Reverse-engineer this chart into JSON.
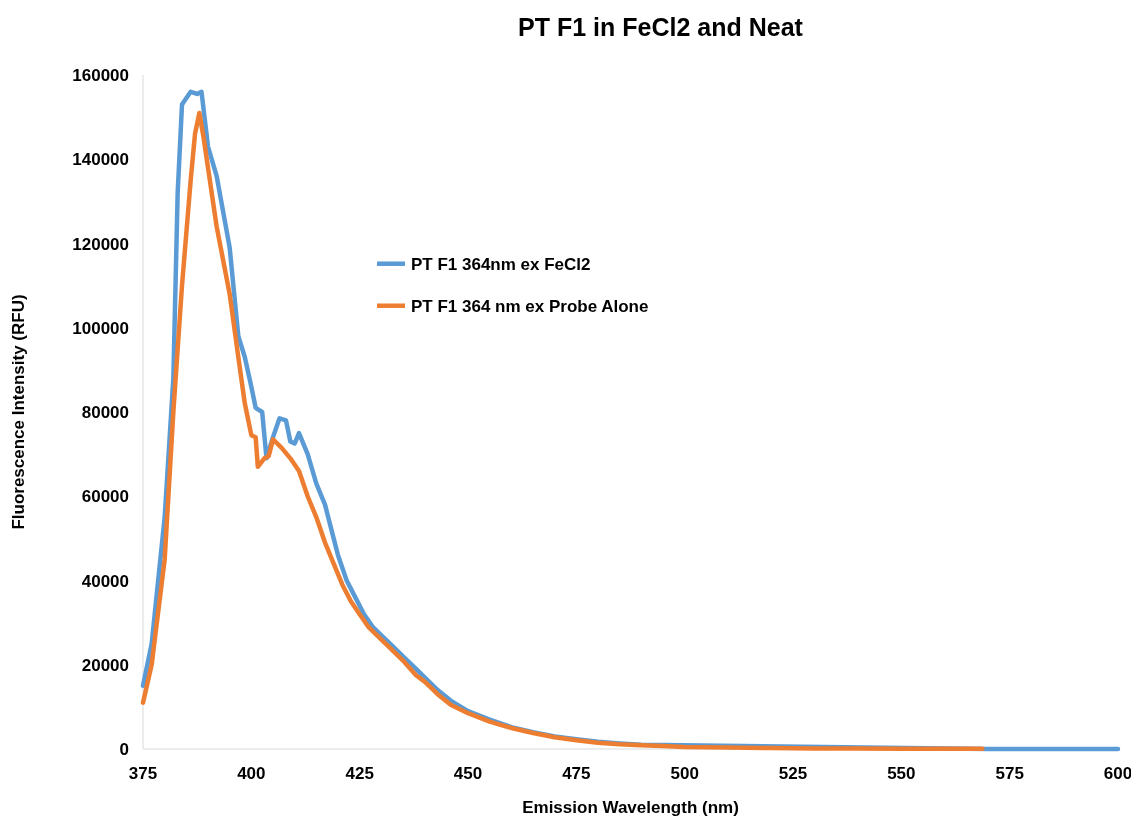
{
  "chart_data": {
    "type": "line",
    "title": "PT F1 in FeCl2 and Neat",
    "xlabel": "Emission Wavelength (nm)",
    "ylabel": "Fluorescence Intensity (RFU)",
    "xlim": [
      375,
      600
    ],
    "xticks": [
      375,
      400,
      425,
      450,
      475,
      500,
      525,
      550,
      575,
      600
    ],
    "ylim": [
      0,
      160000
    ],
    "yticks": [
      0,
      20000,
      40000,
      60000,
      80000,
      100000,
      120000,
      140000,
      160000
    ],
    "grid": false,
    "legend": "top left",
    "line_style": "solid",
    "marker": "none",
    "series": [
      {
        "name": "PT F1 364nm ex FeCl2",
        "color": "#5b9bd5",
        "x": [
          375,
          377,
          380,
          382,
          383,
          384,
          386,
          387.5,
          388.5,
          390,
          392,
          395,
          397,
          398.5,
          400,
          401,
          402.5,
          403.5,
          405,
          406.5,
          408,
          409,
          410,
          411,
          413,
          415,
          417,
          419,
          420,
          422,
          424,
          426,
          428,
          430,
          432,
          435,
          438,
          440,
          443,
          446,
          450,
          455,
          460,
          465,
          470,
          475,
          480,
          485,
          490,
          570,
          600
        ],
        "values": [
          15000,
          25000,
          55000,
          88000,
          132000,
          153000,
          156000,
          155500,
          156000,
          143000,
          136000,
          119000,
          98000,
          93000,
          86000,
          81000,
          80000,
          69000,
          74000,
          78500,
          78000,
          73000,
          72500,
          75000,
          70000,
          63000,
          58000,
          50000,
          46000,
          40000,
          36000,
          32000,
          29000,
          27000,
          25000,
          22000,
          19000,
          17000,
          14000,
          11500,
          9000,
          7000,
          5200,
          4000,
          3000,
          2300,
          1700,
          1300,
          1000,
          0,
          0
        ]
      },
      {
        "name": "PT F1 364 nm ex Probe Alone",
        "color": "#ed7d31",
        "x": [
          375,
          377,
          380,
          382,
          384,
          386,
          387,
          388,
          389,
          390,
          392,
          395,
          397,
          398.5,
          400,
          401,
          401.5,
          403,
          404,
          405,
          407,
          409,
          411,
          413,
          415,
          417,
          419,
          421,
          423,
          425,
          427,
          429,
          432,
          435,
          438,
          440,
          443,
          446,
          450,
          455,
          460,
          465,
          470,
          475,
          480,
          485,
          490,
          495,
          500,
          510,
          520,
          530,
          540,
          550,
          568.7
        ],
        "values": [
          11000,
          20000,
          45000,
          80000,
          110000,
          135000,
          146000,
          151000,
          145000,
          138000,
          124000,
          108000,
          93000,
          82000,
          74500,
          74000,
          67000,
          69000,
          69500,
          73500,
          71500,
          69000,
          66000,
          60000,
          55000,
          49000,
          44000,
          39000,
          35000,
          32000,
          29000,
          27000,
          24000,
          21000,
          17500,
          16000,
          13000,
          10500,
          8500,
          6500,
          5000,
          3800,
          2800,
          2100,
          1500,
          1100,
          900,
          700,
          500,
          350,
          220,
          130,
          90,
          70,
          50
        ]
      }
    ]
  }
}
